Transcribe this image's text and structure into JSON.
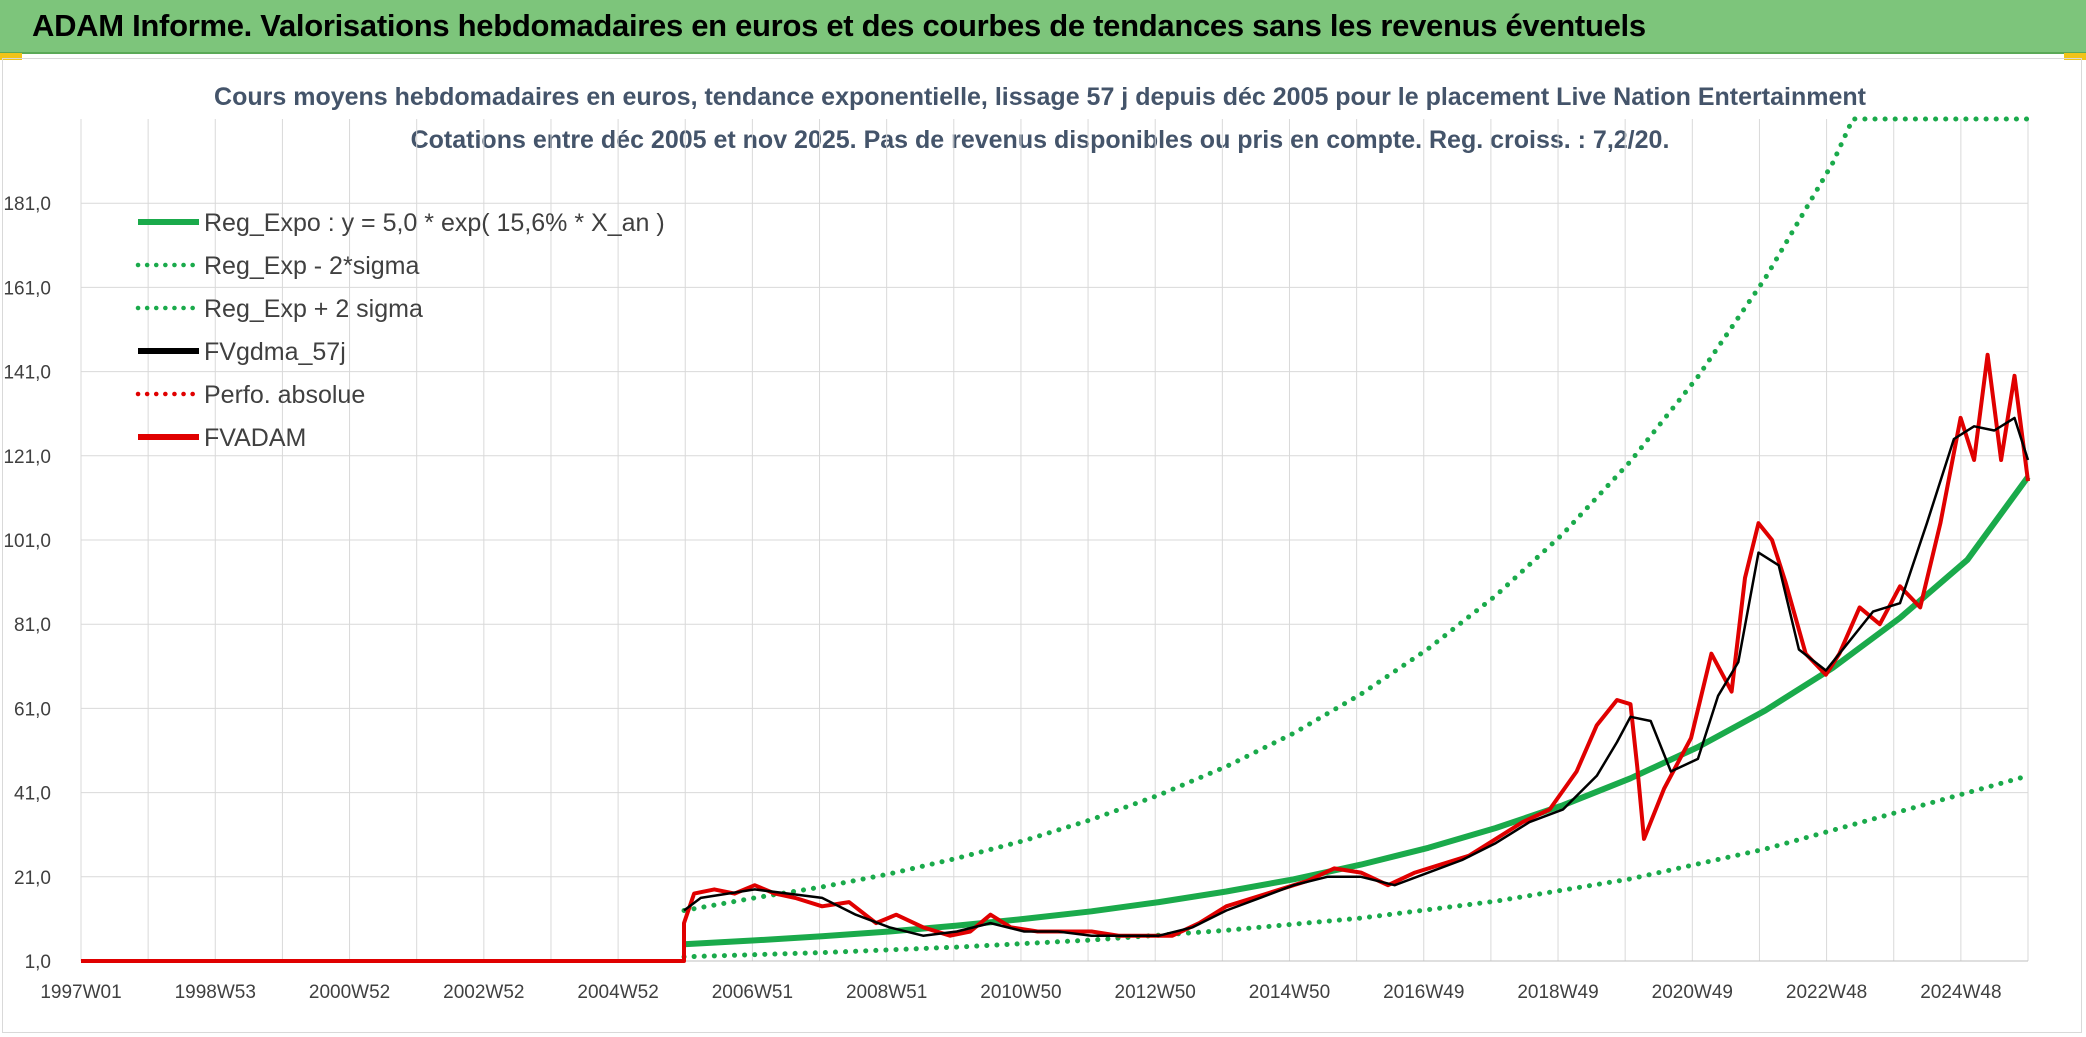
{
  "header": {
    "title": "ADAM Informe. Valorisations hebdomadaires en euros et des courbes de tendances sans les revenus éventuels"
  },
  "chart_data": {
    "type": "line",
    "title": "Cours moyens hebdomadaires en euros, tendance exponentielle, lissage 57 j depuis déc 2005 pour le placement Live Nation Entertainment",
    "subtitle": "Cotations entre déc 2005 et nov 2025. Pas de revenus disponibles ou pris en compte. Reg. croiss. : 7,2/20.",
    "xlabel": "",
    "ylabel": "",
    "ylim": [
      1,
      201
    ],
    "xlim": [
      1997.0,
      2025.9
    ],
    "x_tick_labels": [
      "1997W01",
      "1998W53",
      "2000W52",
      "2002W52",
      "2004W52",
      "2006W51",
      "2008W51",
      "2010W50",
      "2012W50",
      "2014W50",
      "2016W49",
      "2018W49",
      "2020W49",
      "2022W48",
      "2024W48"
    ],
    "y_tick_labels": [
      "1,0",
      "21,0",
      "41,0",
      "61,0",
      "81,0",
      "101,0",
      "121,0",
      "141,0",
      "161,0",
      "181,0"
    ],
    "grid": true,
    "legend_position": "top-left",
    "colors": {
      "trend": "#1aaa4b",
      "band": "#1aaa4b",
      "smooth": "#000000",
      "perf": "#e00000",
      "price": "#e00000"
    },
    "series": [
      {
        "name": "Reg_Expo : y = 5,0 * exp( 15,6% *  X_an )",
        "style": "solid",
        "color": "#1aaa4b",
        "x": [
          2005.95,
          2007,
          2008,
          2009,
          2010,
          2011,
          2012,
          2013,
          2014,
          2015,
          2016,
          2017,
          2018,
          2019,
          2020,
          2021,
          2022,
          2023,
          2024,
          2025,
          2025.9
        ],
        "y": [
          5.0,
          5.9,
          6.9,
          8.0,
          9.4,
          11.0,
          12.8,
          15.0,
          17.5,
          20.4,
          23.9,
          27.9,
          32.6,
          38.0,
          44.4,
          51.8,
          60.5,
          70.6,
          82.5,
          96.3,
          116.0
        ]
      },
      {
        "name": "Reg_Exp - 2*sigma",
        "style": "dotted",
        "color": "#1aaa4b",
        "x": [
          2005.95,
          2008,
          2010,
          2012,
          2014,
          2016,
          2018,
          2020,
          2022,
          2024,
          2025.9
        ],
        "y": [
          2.0,
          3.0,
          4.3,
          6.0,
          8.3,
          11.2,
          15.2,
          20.5,
          27.6,
          36.5,
          45.0
        ]
      },
      {
        "name": "Reg_Exp + 2 sigma",
        "style": "dotted",
        "color": "#1aaa4b",
        "x": [
          2005.95,
          2007,
          2008,
          2009,
          2010,
          2011,
          2012,
          2013,
          2014,
          2015,
          2016,
          2017,
          2018,
          2019,
          2020,
          2021,
          2022,
          2023,
          2023.3,
          2025.9
        ],
        "y": [
          13.0,
          16.0,
          18.6,
          21.7,
          25.4,
          29.6,
          34.6,
          40.4,
          47.2,
          55.1,
          64.4,
          75.2,
          87.8,
          102.5,
          119.7,
          139.8,
          163.2,
          190.5,
          201,
          201
        ]
      },
      {
        "name": "FVgdma_57j",
        "style": "solid",
        "color": "#000000",
        "x": [
          2005.95,
          2006.2,
          2006.6,
          2007.0,
          2007.5,
          2008.0,
          2008.5,
          2009.0,
          2009.5,
          2010.0,
          2010.5,
          2011.0,
          2011.5,
          2012.0,
          2012.5,
          2013.0,
          2013.5,
          2014.0,
          2014.5,
          2015.0,
          2015.5,
          2016.0,
          2016.5,
          2017.0,
          2017.5,
          2018.0,
          2018.5,
          2019.0,
          2019.5,
          2019.8,
          2020.0,
          2020.3,
          2020.6,
          2021.0,
          2021.3,
          2021.6,
          2021.9,
          2022.2,
          2022.5,
          2022.9,
          2023.2,
          2023.6,
          2024.0,
          2024.4,
          2024.8,
          2025.1,
          2025.4,
          2025.7,
          2025.9
        ],
        "y": [
          13,
          16,
          17,
          18,
          17,
          16,
          12,
          9,
          7,
          8,
          10,
          8,
          8,
          7,
          7,
          7,
          9,
          13,
          16,
          19,
          21,
          21,
          19,
          22,
          25,
          29,
          34,
          37,
          45,
          53,
          59,
          58,
          46,
          49,
          64,
          72,
          98,
          95,
          75,
          70,
          76,
          84,
          86,
          105,
          125,
          128,
          127,
          130,
          120
        ]
      },
      {
        "name": "Perfo. absolue",
        "style": "dotted",
        "color": "#e00000",
        "x": [],
        "y": []
      },
      {
        "name": "FVADAM",
        "style": "solid",
        "color": "#e00000",
        "x": [
          1997.0,
          2005.95,
          2005.95,
          2006.1,
          2006.4,
          2006.7,
          2007.0,
          2007.3,
          2007.6,
          2008.0,
          2008.4,
          2008.8,
          2009.1,
          2009.5,
          2009.9,
          2010.2,
          2010.5,
          2010.8,
          2011.2,
          2011.6,
          2012.0,
          2012.4,
          2012.8,
          2013.2,
          2013.6,
          2014.0,
          2014.4,
          2014.8,
          2015.2,
          2015.6,
          2016.0,
          2016.4,
          2016.8,
          2017.2,
          2017.6,
          2018.0,
          2018.4,
          2018.8,
          2019.2,
          2019.5,
          2019.8,
          2020.0,
          2020.1,
          2020.2,
          2020.5,
          2020.9,
          2021.2,
          2021.5,
          2021.7,
          2021.9,
          2022.1,
          2022.3,
          2022.6,
          2022.9,
          2023.1,
          2023.4,
          2023.7,
          2024.0,
          2024.3,
          2024.6,
          2024.9,
          2025.1,
          2025.3,
          2025.5,
          2025.7,
          2025.9
        ],
        "y": [
          1,
          1,
          10,
          17,
          18,
          17,
          19,
          17,
          16,
          14,
          15,
          10,
          12,
          9,
          7,
          8,
          12,
          9,
          8,
          8,
          8,
          7,
          7,
          7,
          10,
          14,
          16,
          18,
          20,
          23,
          22,
          19,
          22,
          24,
          26,
          30,
          34,
          37,
          46,
          57,
          63,
          62,
          47,
          30,
          42,
          54,
          74,
          65,
          92,
          105,
          101,
          91,
          74,
          69,
          74,
          85,
          81,
          90,
          85,
          105,
          130,
          120,
          145,
          120,
          140,
          115
        ]
      }
    ]
  }
}
